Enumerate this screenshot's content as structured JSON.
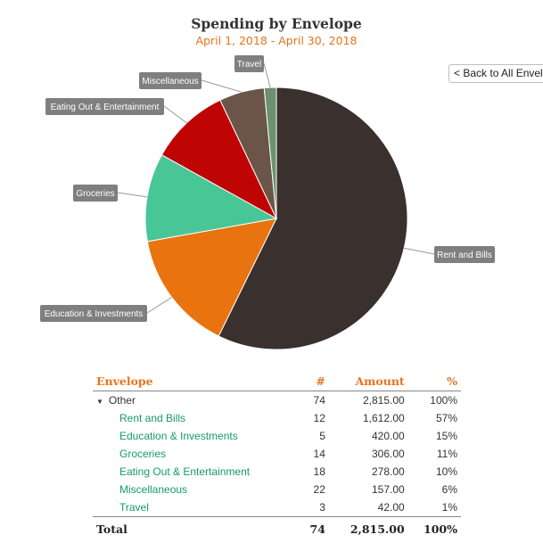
{
  "header": {
    "title": "Spending by Envelope",
    "date_range": "April 1, 2018 - April 30, 2018",
    "back_button": "< Back to All Envelopes"
  },
  "chart_data": {
    "type": "pie",
    "title": "Spending by Envelope",
    "subtitle": "April 1, 2018 - April 30, 2018",
    "categories": [
      "Rent and Bills",
      "Education & Investments",
      "Groceries",
      "Eating Out & Entertainment",
      "Miscellaneous",
      "Travel"
    ],
    "values": [
      1612.0,
      420.0,
      306.0,
      278.0,
      157.0,
      42.0
    ],
    "colors": [
      "#3a302e",
      "#e8730f",
      "#48c696",
      "#bf0404",
      "#6b5549",
      "#6c9170"
    ],
    "label_color": "#7f7f7f"
  },
  "table": {
    "headers": {
      "envelope": "Envelope",
      "count": "#",
      "amount": "Amount",
      "percent": "%"
    },
    "group": {
      "name": "Other",
      "count": "74",
      "amount": "2,815.00",
      "percent": "100%"
    },
    "rows": [
      {
        "name": "Rent and Bills",
        "count": "12",
        "amount": "1,612.00",
        "percent": "57%"
      },
      {
        "name": "Education & Investments",
        "count": "5",
        "amount": "420.00",
        "percent": "15%"
      },
      {
        "name": "Groceries",
        "count": "14",
        "amount": "306.00",
        "percent": "11%"
      },
      {
        "name": "Eating Out & Entertainment",
        "count": "18",
        "amount": "278.00",
        "percent": "10%"
      },
      {
        "name": "Miscellaneous",
        "count": "22",
        "amount": "157.00",
        "percent": "6%"
      },
      {
        "name": "Travel",
        "count": "3",
        "amount": "42.00",
        "percent": "1%"
      }
    ],
    "total": {
      "label": "Total",
      "count": "74",
      "amount": "2,815.00",
      "percent": "100%"
    }
  },
  "colors": {
    "accent": "#e8731c",
    "link": "#17996d"
  }
}
